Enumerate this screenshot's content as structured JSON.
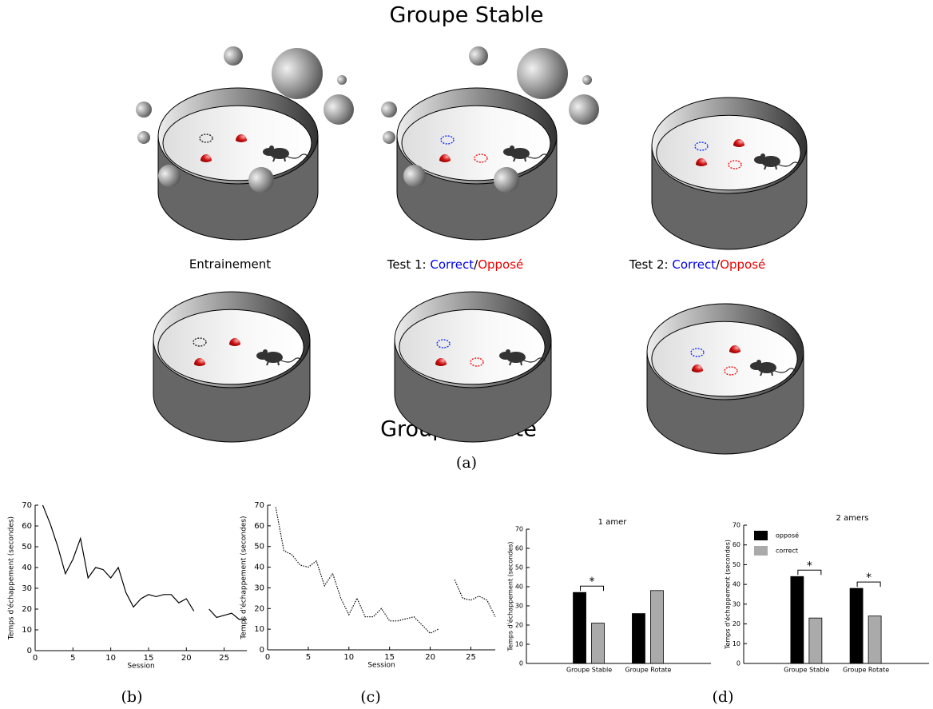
{
  "figure": {
    "top_title": "Groupe Stable",
    "bottom_title": "Groupe Rotate",
    "phase_labels": {
      "training": "Entrainement",
      "test1": {
        "prefix": "Test 1:",
        "correct": "Correct",
        "separator": "/",
        "opposite": "Opposé"
      },
      "test2": {
        "prefix": "Test 2:",
        "correct": "Correct",
        "separator": "/",
        "opposite": "Opposé"
      }
    },
    "captions": [
      "(a)",
      "(b)",
      "(c)",
      "(d)"
    ]
  },
  "chart_data": [
    {
      "type": "line",
      "x": [
        1,
        2,
        3,
        4,
        5,
        6,
        7,
        8,
        9,
        10,
        11,
        12,
        13,
        14,
        15,
        16,
        17,
        18,
        19,
        20,
        21,
        22,
        23,
        24,
        25,
        26,
        27,
        28
      ],
      "series": [
        {
          "color": "#000000",
          "line_style": "solid",
          "values": [
            70,
            61,
            50,
            37,
            44,
            54,
            35,
            40,
            39,
            35,
            40,
            28,
            21,
            25,
            27,
            26,
            27,
            27,
            23,
            25,
            19,
            null,
            20,
            16,
            17,
            18,
            15,
            15
          ]
        }
      ],
      "xlim": [
        0,
        28
      ],
      "xticks": [
        0,
        5,
        10,
        15,
        20,
        25
      ],
      "ylim": [
        0,
        70
      ],
      "yticks": [
        0,
        10,
        20,
        30,
        40,
        50,
        60,
        70
      ],
      "x_label": "Session",
      "y_label": "Temps d'échappement (secondes)"
    },
    {
      "type": "line",
      "x": [
        1,
        2,
        3,
        4,
        5,
        6,
        7,
        8,
        9,
        10,
        11,
        12,
        13,
        14,
        15,
        16,
        17,
        18,
        19,
        20,
        21,
        22,
        23,
        24,
        25,
        26,
        27,
        28
      ],
      "series": [
        {
          "color": "#000000",
          "line_style": "dotted",
          "values": [
            69,
            48,
            46,
            41,
            40,
            43,
            31,
            37,
            25,
            17,
            25,
            16,
            16,
            20,
            14,
            14,
            15,
            16,
            12,
            8,
            10,
            null,
            34,
            25,
            24,
            26,
            24,
            16
          ]
        }
      ],
      "xlim": [
        0,
        28
      ],
      "xticks": [
        0,
        5,
        10,
        15,
        20,
        25
      ],
      "ylim": [
        0,
        70
      ],
      "yticks": [
        0,
        10,
        20,
        30,
        40,
        50,
        60,
        70
      ],
      "x_label": "Session",
      "y_label": "Temps d'échappement (secondes)"
    },
    {
      "type": "bar",
      "title": "1 amer",
      "categories": [
        "Groupe Stable",
        "Groupe Rotate"
      ],
      "series": [
        {
          "color": "#000000",
          "values": [
            37,
            26
          ]
        },
        {
          "color": "#aaaaaa",
          "values": [
            21,
            38
          ]
        }
      ],
      "ylim": [
        0,
        70
      ],
      "yticks": [
        0,
        10,
        20,
        30,
        40,
        50,
        60,
        70
      ],
      "y_label": "Temps d'échappement (secondes)",
      "annotations": [
        {
          "text": "*",
          "category": 0
        }
      ]
    },
    {
      "type": "bar",
      "title": "2 amers",
      "categories": [
        "Groupe Stable",
        "Groupe Rotate"
      ],
      "series": [
        {
          "name": "opposé",
          "color": "#000000",
          "values": [
            44,
            38
          ]
        },
        {
          "name": "correct",
          "color": "#aaaaaa",
          "values": [
            23,
            24
          ]
        }
      ],
      "ylim": [
        0,
        70
      ],
      "yticks": [
        0,
        10,
        20,
        30,
        40,
        50,
        60,
        70
      ],
      "y_label": "Temps d'échappement (secondes)",
      "legend": "upper left",
      "annotations": [
        {
          "text": "*",
          "category": 0
        },
        {
          "text": "*",
          "category": 1
        }
      ]
    }
  ]
}
